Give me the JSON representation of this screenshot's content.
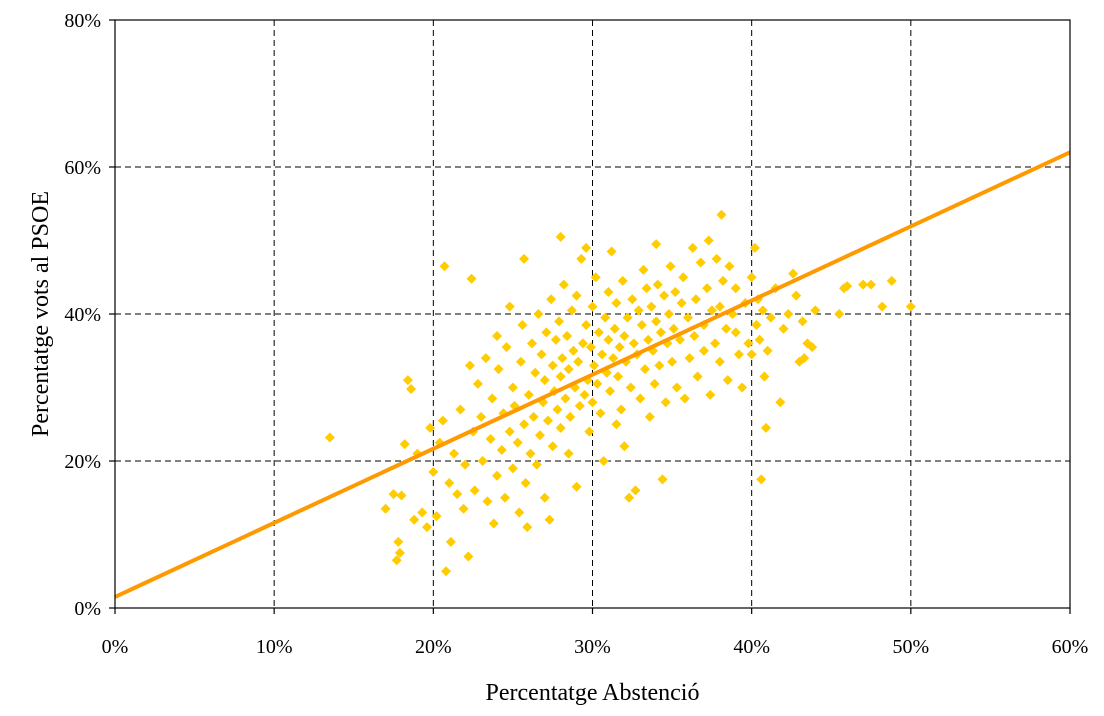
{
  "chart_data": {
    "type": "scatter",
    "title": "",
    "xlabel": "Percentatge Abstenció",
    "ylabel": "Percentatge vots al PSOE",
    "xlim": [
      0,
      60
    ],
    "ylim": [
      0,
      80
    ],
    "x_ticks": [
      "0%",
      "10%",
      "20%",
      "30%",
      "40%",
      "50%",
      "60%"
    ],
    "y_ticks": [
      "0%",
      "20%",
      "40%",
      "60%",
      "80%"
    ],
    "x_tick_values": [
      0,
      10,
      20,
      30,
      40,
      50,
      60
    ],
    "y_tick_values": [
      0,
      20,
      40,
      60,
      80
    ],
    "grid": true,
    "legend": "none",
    "colors": {
      "points": "#FFCC00",
      "trendline": "#FF9900"
    },
    "point_marker": "diamond",
    "trendline": {
      "x": [
        0,
        60
      ],
      "y": [
        1.5,
        62
      ]
    },
    "series": [
      {
        "values": [
          [
            13.5,
            23.2
          ],
          [
            17.0,
            13.5
          ],
          [
            17.5,
            15.5
          ],
          [
            17.7,
            6.5
          ],
          [
            17.8,
            9.0
          ],
          [
            17.9,
            7.5
          ],
          [
            18.0,
            15.3
          ],
          [
            18.2,
            22.3
          ],
          [
            18.4,
            31.0
          ],
          [
            18.6,
            29.8
          ],
          [
            18.8,
            12.0
          ],
          [
            19.0,
            21.0
          ],
          [
            19.3,
            13.0
          ],
          [
            19.6,
            11.0
          ],
          [
            19.8,
            24.5
          ],
          [
            20.0,
            18.5
          ],
          [
            20.2,
            12.5
          ],
          [
            20.4,
            22.5
          ],
          [
            20.6,
            25.5
          ],
          [
            20.7,
            46.5
          ],
          [
            20.8,
            5.0
          ],
          [
            21.0,
            17.0
          ],
          [
            21.1,
            9.0
          ],
          [
            21.3,
            21.0
          ],
          [
            21.5,
            15.5
          ],
          [
            21.7,
            27.0
          ],
          [
            21.9,
            13.5
          ],
          [
            22.0,
            19.5
          ],
          [
            22.2,
            7.0
          ],
          [
            22.3,
            33.0
          ],
          [
            22.4,
            44.8
          ],
          [
            22.5,
            24.0
          ],
          [
            22.6,
            16.0
          ],
          [
            22.8,
            30.5
          ],
          [
            23.0,
            26.0
          ],
          [
            23.1,
            20.0
          ],
          [
            23.3,
            34.0
          ],
          [
            23.4,
            14.5
          ],
          [
            23.6,
            23.0
          ],
          [
            23.7,
            28.5
          ],
          [
            23.8,
            11.5
          ],
          [
            24.0,
            37.0
          ],
          [
            24.0,
            18.0
          ],
          [
            24.1,
            32.5
          ],
          [
            24.3,
            21.5
          ],
          [
            24.4,
            26.5
          ],
          [
            24.5,
            15.0
          ],
          [
            24.6,
            35.5
          ],
          [
            24.8,
            41.0
          ],
          [
            24.8,
            24.0
          ],
          [
            25.0,
            30.0
          ],
          [
            25.0,
            19.0
          ],
          [
            25.1,
            27.5
          ],
          [
            25.3,
            22.5
          ],
          [
            25.4,
            13.0
          ],
          [
            25.5,
            33.5
          ],
          [
            25.6,
            38.5
          ],
          [
            25.7,
            47.5
          ],
          [
            25.7,
            25.0
          ],
          [
            25.8,
            17.0
          ],
          [
            25.9,
            11.0
          ],
          [
            26.0,
            29.0
          ],
          [
            26.1,
            21.0
          ],
          [
            26.2,
            36.0
          ],
          [
            26.3,
            26.0
          ],
          [
            26.4,
            32.0
          ],
          [
            26.5,
            19.5
          ],
          [
            26.6,
            40.0
          ],
          [
            26.7,
            23.5
          ],
          [
            26.8,
            34.5
          ],
          [
            26.9,
            28.0
          ],
          [
            27.0,
            15.0
          ],
          [
            27.0,
            31.0
          ],
          [
            27.1,
            37.5
          ],
          [
            27.2,
            25.5
          ],
          [
            27.3,
            12.0
          ],
          [
            27.4,
            42.0
          ],
          [
            27.5,
            33.0
          ],
          [
            27.5,
            22.0
          ],
          [
            27.6,
            29.5
          ],
          [
            27.7,
            36.5
          ],
          [
            27.8,
            27.0
          ],
          [
            27.9,
            39.0
          ],
          [
            28.0,
            50.5
          ],
          [
            28.0,
            31.5
          ],
          [
            28.0,
            24.5
          ],
          [
            28.1,
            34.0
          ],
          [
            28.2,
            44.0
          ],
          [
            28.3,
            28.5
          ],
          [
            28.4,
            37.0
          ],
          [
            28.5,
            21.0
          ],
          [
            28.5,
            32.5
          ],
          [
            28.6,
            26.0
          ],
          [
            28.7,
            40.5
          ],
          [
            28.8,
            35.0
          ],
          [
            28.9,
            30.0
          ],
          [
            29.0,
            16.5
          ],
          [
            29.0,
            42.5
          ],
          [
            29.1,
            33.5
          ],
          [
            29.2,
            27.5
          ],
          [
            29.3,
            47.5
          ],
          [
            29.4,
            36.0
          ],
          [
            29.5,
            29.0
          ],
          [
            29.6,
            49.0
          ],
          [
            29.6,
            38.5
          ],
          [
            29.7,
            31.0
          ],
          [
            29.8,
            24.0
          ],
          [
            29.9,
            35.5
          ],
          [
            30.0,
            28.0
          ],
          [
            30.0,
            41.0
          ],
          [
            30.1,
            33.0
          ],
          [
            30.2,
            45.0
          ],
          [
            30.3,
            30.5
          ],
          [
            30.4,
            37.5
          ],
          [
            30.5,
            26.5
          ],
          [
            30.6,
            34.5
          ],
          [
            30.7,
            20.0
          ],
          [
            30.8,
            39.5
          ],
          [
            30.9,
            32.0
          ],
          [
            31.0,
            43.0
          ],
          [
            31.0,
            36.5
          ],
          [
            31.1,
            29.5
          ],
          [
            31.2,
            48.5
          ],
          [
            31.3,
            34.0
          ],
          [
            31.4,
            38.0
          ],
          [
            31.5,
            25.0
          ],
          [
            31.5,
            41.5
          ],
          [
            31.6,
            31.5
          ],
          [
            31.7,
            35.5
          ],
          [
            31.8,
            27.0
          ],
          [
            31.9,
            44.5
          ],
          [
            32.0,
            37.0
          ],
          [
            32.0,
            22.0
          ],
          [
            32.1,
            33.5
          ],
          [
            32.2,
            39.5
          ],
          [
            32.3,
            15.0
          ],
          [
            32.4,
            30.0
          ],
          [
            32.5,
            42.0
          ],
          [
            32.6,
            36.0
          ],
          [
            32.7,
            16.0
          ],
          [
            32.8,
            34.5
          ],
          [
            32.9,
            40.5
          ],
          [
            33.0,
            28.5
          ],
          [
            33.1,
            38.5
          ],
          [
            33.2,
            46.0
          ],
          [
            33.3,
            32.5
          ],
          [
            33.4,
            43.5
          ],
          [
            33.5,
            36.5
          ],
          [
            33.6,
            26.0
          ],
          [
            33.7,
            41.0
          ],
          [
            33.8,
            35.0
          ],
          [
            33.9,
            30.5
          ],
          [
            34.0,
            39.0
          ],
          [
            34.0,
            49.5
          ],
          [
            34.1,
            44.0
          ],
          [
            34.2,
            33.0
          ],
          [
            34.3,
            37.5
          ],
          [
            34.4,
            17.5
          ],
          [
            34.5,
            42.5
          ],
          [
            34.6,
            28.0
          ],
          [
            34.7,
            36.0
          ],
          [
            34.8,
            40.0
          ],
          [
            34.9,
            46.5
          ],
          [
            35.0,
            33.5
          ],
          [
            35.1,
            38.0
          ],
          [
            35.2,
            43.0
          ],
          [
            35.3,
            30.0
          ],
          [
            35.5,
            36.5
          ],
          [
            35.6,
            41.5
          ],
          [
            35.7,
            45.0
          ],
          [
            35.8,
            28.5
          ],
          [
            36.0,
            39.5
          ],
          [
            36.1,
            34.0
          ],
          [
            36.3,
            49.0
          ],
          [
            36.4,
            37.0
          ],
          [
            36.5,
            42.0
          ],
          [
            36.6,
            31.5
          ],
          [
            36.8,
            47.0
          ],
          [
            37.0,
            38.5
          ],
          [
            37.0,
            35.0
          ],
          [
            37.2,
            43.5
          ],
          [
            37.3,
            50.0
          ],
          [
            37.4,
            29.0
          ],
          [
            37.5,
            40.5
          ],
          [
            37.7,
            36.0
          ],
          [
            37.8,
            47.5
          ],
          [
            38.0,
            33.5
          ],
          [
            38.0,
            41.0
          ],
          [
            38.1,
            53.5
          ],
          [
            38.2,
            44.5
          ],
          [
            38.4,
            38.0
          ],
          [
            38.5,
            31.0
          ],
          [
            38.6,
            46.5
          ],
          [
            38.8,
            40.0
          ],
          [
            39.0,
            37.5
          ],
          [
            39.0,
            43.5
          ],
          [
            39.2,
            34.5
          ],
          [
            39.4,
            30.0
          ],
          [
            39.6,
            41.5
          ],
          [
            39.8,
            36.0
          ],
          [
            40.0,
            45.0
          ],
          [
            40.0,
            34.5
          ],
          [
            40.2,
            49.0
          ],
          [
            40.3,
            38.5
          ],
          [
            40.4,
            42.0
          ],
          [
            40.5,
            36.5
          ],
          [
            40.6,
            17.5
          ],
          [
            40.7,
            40.5
          ],
          [
            40.8,
            31.5
          ],
          [
            40.9,
            24.5
          ],
          [
            41.0,
            35.0
          ],
          [
            41.2,
            39.5
          ],
          [
            41.5,
            43.5
          ],
          [
            41.8,
            28.0
          ],
          [
            42.0,
            38.0
          ],
          [
            42.3,
            40.0
          ],
          [
            42.6,
            45.5
          ],
          [
            42.8,
            42.5
          ],
          [
            43.0,
            33.5
          ],
          [
            43.2,
            39.0
          ],
          [
            43.3,
            34.0
          ],
          [
            43.5,
            36.0
          ],
          [
            43.8,
            35.5
          ],
          [
            44.0,
            40.5
          ],
          [
            45.5,
            40.0
          ],
          [
            45.8,
            43.5
          ],
          [
            46.0,
            43.8
          ],
          [
            47.0,
            44.0
          ],
          [
            47.5,
            44.0
          ],
          [
            48.2,
            41.0
          ],
          [
            48.8,
            44.5
          ],
          [
            50.0,
            41.0
          ]
        ]
      }
    ]
  }
}
